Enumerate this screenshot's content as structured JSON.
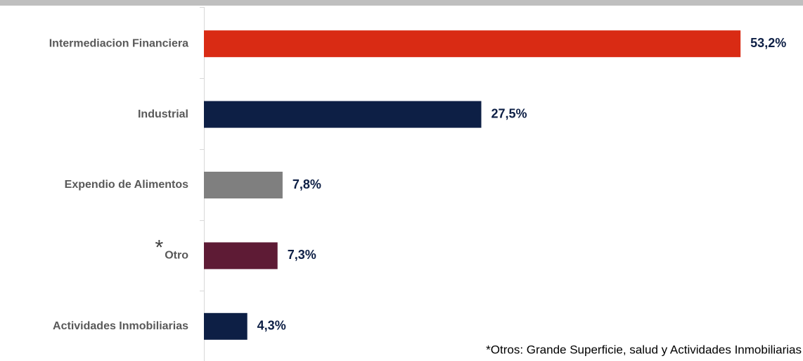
{
  "chart_data": {
    "type": "bar",
    "orientation": "horizontal",
    "categories": [
      "Intermediacion Financiera",
      "Industrial",
      "Expendio de Alimentos",
      "Otro",
      "Actividades Inmobiliarias"
    ],
    "values": [
      53.2,
      27.5,
      7.8,
      7.3,
      4.3
    ],
    "value_labels": [
      "53,2%",
      "27,5%",
      "7,8%",
      "7,3%",
      "4,3%"
    ],
    "colors": [
      "#d92b14",
      "#0d1f45",
      "#7f7f7f",
      "#5e1b35",
      "#0d1f45"
    ],
    "category_marker": "*",
    "footnote": "*Otros: Grande Superficie, salud y Actividades Inmobiliarias",
    "xlim": [
      0,
      55
    ]
  }
}
